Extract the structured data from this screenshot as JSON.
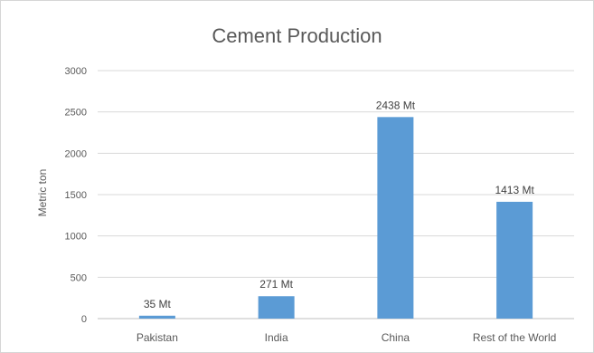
{
  "chart_data": {
    "type": "bar",
    "title": "Cement Production",
    "xlabel": "",
    "ylabel": "Metric ton",
    "categories": [
      "Pakistan",
      "India",
      "China",
      "Rest of the World"
    ],
    "values": [
      35,
      271,
      2438,
      1413
    ],
    "data_labels": [
      "35 Mt",
      "271 Mt",
      "2438 Mt",
      "1413 Mt"
    ],
    "ylim": [
      0,
      3000
    ],
    "yticks": [
      0,
      500,
      1000,
      1500,
      2000,
      2500,
      3000
    ],
    "grid": true,
    "legend": "none",
    "bar_color": "#5b9bd5"
  }
}
